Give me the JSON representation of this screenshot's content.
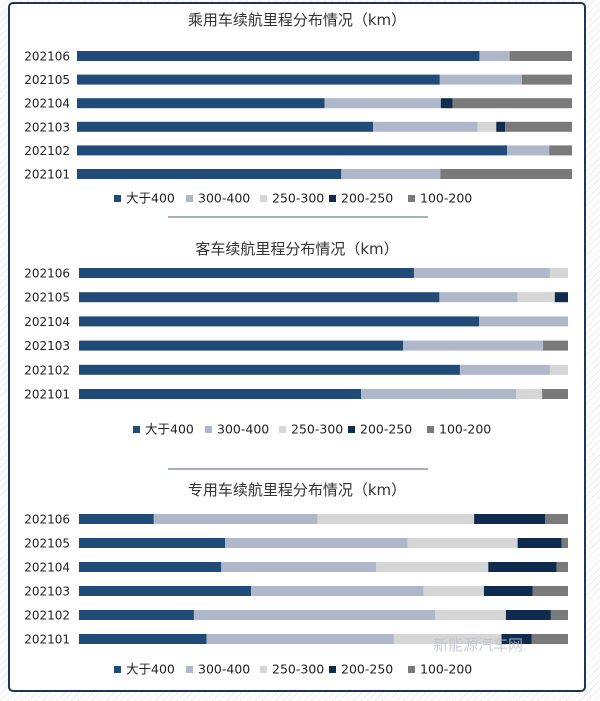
{
  "watermark": "新能源汽车网",
  "legend": [
    "大于400",
    "300-400",
    "250-300",
    "200-250",
    "100-200"
  ],
  "colors": [
    "#204b78",
    "#aeb8ca",
    "#d6d6d6",
    "#0f2b4e",
    "#7a7a7a"
  ],
  "chart_data": [
    {
      "type": "bar",
      "orientation": "horizontal",
      "stacked": true,
      "percent": true,
      "title": "乘用车续航里程分布情况（km）",
      "categories": [
        "202106",
        "202105",
        "202104",
        "202103",
        "202102",
        "202101"
      ],
      "series": [
        {
          "name": "大于400",
          "values": [
            81.3,
            73.3,
            50.0,
            59.8,
            86.9,
            53.4
          ]
        },
        {
          "name": "300-400",
          "values": [
            6.1,
            16.6,
            23.5,
            21.1,
            8.5,
            20.0
          ]
        },
        {
          "name": "250-300",
          "values": [
            0,
            0,
            0,
            3.8,
            0,
            0
          ]
        },
        {
          "name": "200-250",
          "values": [
            0,
            0,
            2.4,
            1.8,
            0,
            0
          ]
        },
        {
          "name": "100-200",
          "values": [
            12.6,
            10.1,
            24.1,
            13.5,
            4.6,
            26.6
          ]
        }
      ],
      "xlim": [
        0,
        100
      ],
      "legend_position": "bottom"
    },
    {
      "type": "bar",
      "orientation": "horizontal",
      "stacked": true,
      "percent": true,
      "title": "客车续航里程分布情况（km）",
      "categories": [
        "202106",
        "202105",
        "202104",
        "202103",
        "202102",
        "202101"
      ],
      "series": [
        {
          "name": "大于400",
          "values": [
            68.5,
            73.7,
            81.8,
            66.3,
            77.9,
            57.7
          ]
        },
        {
          "name": "300-400",
          "values": [
            27.8,
            16.0,
            18.2,
            28.6,
            18.4,
            31.7
          ]
        },
        {
          "name": "250-300",
          "values": [
            3.7,
            7.6,
            0,
            0,
            3.7,
            5.3
          ]
        },
        {
          "name": "200-250",
          "values": [
            0,
            2.7,
            0,
            0,
            0,
            0
          ]
        },
        {
          "name": "100-200",
          "values": [
            0,
            0,
            0,
            5.1,
            0,
            5.3
          ]
        }
      ],
      "xlim": [
        0,
        100
      ],
      "legend_position": "bottom"
    },
    {
      "type": "bar",
      "orientation": "horizontal",
      "stacked": true,
      "percent": true,
      "title": "专用车续航里程分布情况（km）",
      "categories": [
        "202106",
        "202105",
        "202104",
        "202103",
        "202102",
        "202101"
      ],
      "series": [
        {
          "name": "大于400",
          "values": [
            15.3,
            29.9,
            29.1,
            35.2,
            23.5,
            26.1
          ]
        },
        {
          "name": "300-400",
          "values": [
            33.5,
            37.3,
            31.7,
            35.3,
            49.3,
            38.3
          ]
        },
        {
          "name": "250-300",
          "values": [
            32.0,
            22.5,
            22.9,
            12.3,
            14.5,
            22.0
          ]
        },
        {
          "name": "200-250",
          "values": [
            14.5,
            9.0,
            14.0,
            10.0,
            9.2,
            6.2
          ]
        },
        {
          "name": "100-200",
          "values": [
            4.7,
            1.3,
            2.3,
            7.2,
            3.5,
            7.4
          ]
        }
      ],
      "xlim": [
        0,
        100
      ],
      "legend_position": "bottom"
    }
  ]
}
